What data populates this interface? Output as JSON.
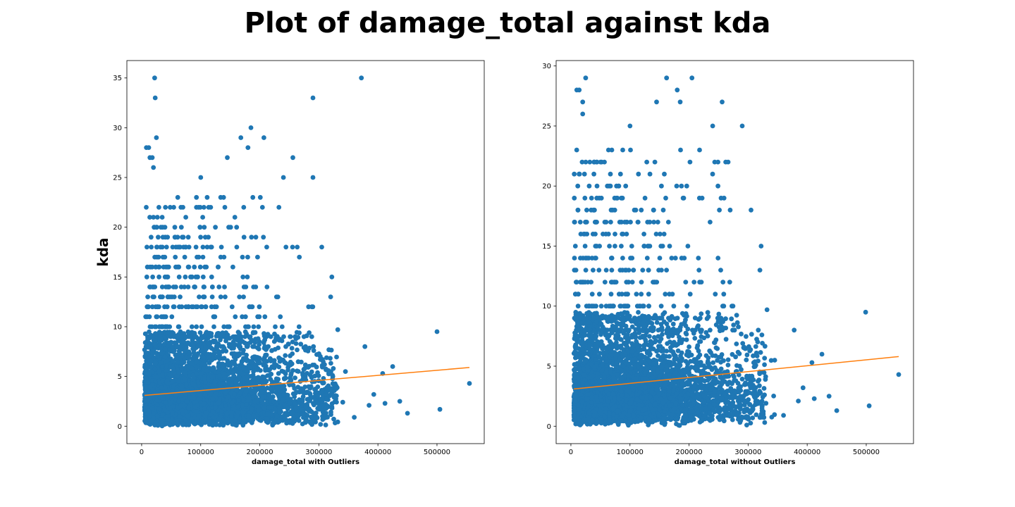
{
  "figure": {
    "title": "Plot of damage_total against kda"
  },
  "colors": {
    "points": "#1f77b4",
    "fit_line": "#ff7f0e",
    "axes": "#000000",
    "background": "#ffffff"
  },
  "chart_data": [
    {
      "type": "scatter",
      "title": "",
      "xlabel": "damage_total with Outliers",
      "ylabel": "kda",
      "xlim": [
        -25000,
        580000
      ],
      "ylim": [
        -1.75,
        36.75
      ],
      "xticks": [
        0,
        100000,
        200000,
        300000,
        400000,
        500000
      ],
      "yticks": [
        0,
        5,
        10,
        15,
        20,
        25,
        30,
        35
      ],
      "grid": false,
      "legend": "none",
      "fit_line": {
        "x": [
          5000,
          555000
        ],
        "y": [
          3.1,
          5.9
        ]
      },
      "highlight_points": [
        {
          "x": 22000,
          "y": 35
        },
        {
          "x": 23000,
          "y": 33
        },
        {
          "x": 372000,
          "y": 35
        },
        {
          "x": 290000,
          "y": 33
        },
        {
          "x": 185000,
          "y": 30
        },
        {
          "x": 207000,
          "y": 29
        },
        {
          "x": 168000,
          "y": 29
        },
        {
          "x": 25000,
          "y": 29
        },
        {
          "x": 8000,
          "y": 28
        },
        {
          "x": 12000,
          "y": 28
        },
        {
          "x": 180000,
          "y": 28
        },
        {
          "x": 14000,
          "y": 27
        },
        {
          "x": 18000,
          "y": 27
        },
        {
          "x": 256000,
          "y": 27
        },
        {
          "x": 145000,
          "y": 27
        },
        {
          "x": 20000,
          "y": 26
        },
        {
          "x": 100000,
          "y": 25
        },
        {
          "x": 290000,
          "y": 25
        },
        {
          "x": 240000,
          "y": 25
        },
        {
          "x": 500000,
          "y": 9.5
        },
        {
          "x": 555000,
          "y": 4.3
        },
        {
          "x": 505000,
          "y": 1.7
        },
        {
          "x": 450000,
          "y": 1.3
        },
        {
          "x": 437000,
          "y": 2.5
        },
        {
          "x": 425000,
          "y": 6
        },
        {
          "x": 378000,
          "y": 8
        },
        {
          "x": 360000,
          "y": 0.9
        },
        {
          "x": 305000,
          "y": 18
        },
        {
          "x": 322000,
          "y": 15
        },
        {
          "x": 320000,
          "y": 13
        },
        {
          "x": 332000,
          "y": 9.7
        },
        {
          "x": 408000,
          "y": 5.3
        },
        {
          "x": 412000,
          "y": 2.3
        },
        {
          "x": 393000,
          "y": 3.2
        },
        {
          "x": 385000,
          "y": 2.1
        },
        {
          "x": 345000,
          "y": 5.5
        }
      ],
      "cloud": {
        "n": 5200,
        "seed": 7
      }
    },
    {
      "type": "scatter",
      "title": "",
      "xlabel": "damage_total without Outliers",
      "ylabel": "",
      "xlim": [
        -25000,
        580000
      ],
      "ylim": [
        -1.45,
        30.45
      ],
      "xticks": [
        0,
        100000,
        200000,
        300000,
        400000,
        500000
      ],
      "yticks": [
        0,
        5,
        10,
        15,
        20,
        25,
        30
      ],
      "grid": false,
      "legend": "none",
      "fit_line": {
        "x": [
          5000,
          555000
        ],
        "y": [
          3.1,
          5.8
        ]
      },
      "highlight_points": [
        {
          "x": 25000,
          "y": 29
        },
        {
          "x": 162000,
          "y": 29
        },
        {
          "x": 205000,
          "y": 29
        },
        {
          "x": 10000,
          "y": 28
        },
        {
          "x": 14000,
          "y": 28
        },
        {
          "x": 180000,
          "y": 28
        },
        {
          "x": 20000,
          "y": 27
        },
        {
          "x": 145000,
          "y": 27
        },
        {
          "x": 185000,
          "y": 27
        },
        {
          "x": 256000,
          "y": 27
        },
        {
          "x": 20000,
          "y": 26
        },
        {
          "x": 100000,
          "y": 25
        },
        {
          "x": 290000,
          "y": 25
        },
        {
          "x": 240000,
          "y": 25
        },
        {
          "x": 499000,
          "y": 9.5
        },
        {
          "x": 555000,
          "y": 4.3
        },
        {
          "x": 505000,
          "y": 1.7
        },
        {
          "x": 450000,
          "y": 1.3
        },
        {
          "x": 437000,
          "y": 2.5
        },
        {
          "x": 425000,
          "y": 6
        },
        {
          "x": 378000,
          "y": 8
        },
        {
          "x": 360000,
          "y": 0.9
        },
        {
          "x": 305000,
          "y": 18
        },
        {
          "x": 322000,
          "y": 15
        },
        {
          "x": 320000,
          "y": 13
        },
        {
          "x": 332000,
          "y": 9.7
        },
        {
          "x": 408000,
          "y": 5.3
        },
        {
          "x": 412000,
          "y": 2.3
        },
        {
          "x": 393000,
          "y": 3.2
        },
        {
          "x": 385000,
          "y": 2.1
        },
        {
          "x": 345000,
          "y": 5.5
        }
      ],
      "cloud": {
        "n": 5000,
        "seed": 11
      }
    }
  ]
}
